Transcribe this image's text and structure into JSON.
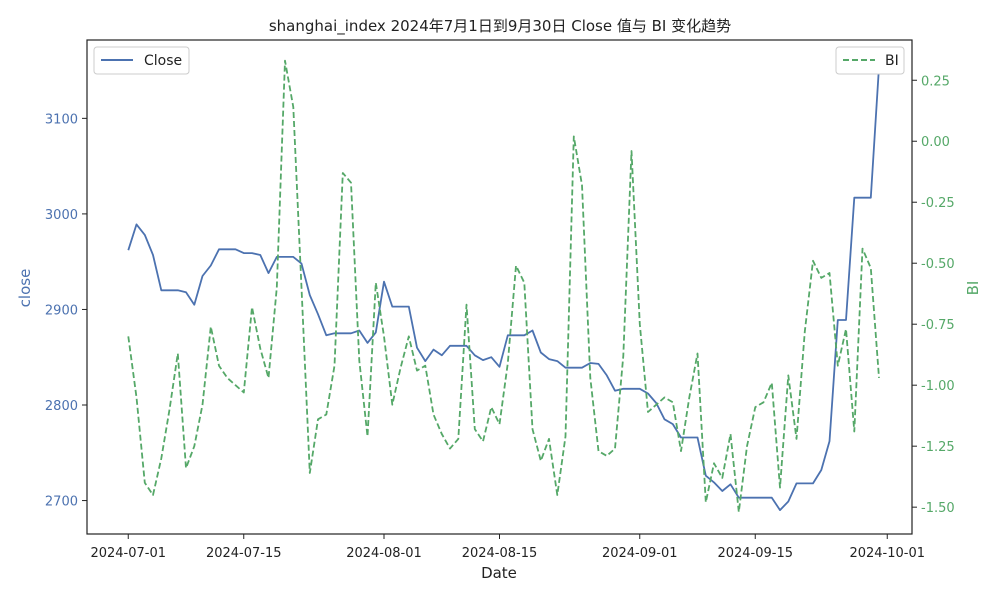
{
  "chart_data": {
    "type": "line",
    "title": "shanghai_index 2024年7月1日到9月30日 Close 值与 BI 变化趋势",
    "xlabel": "Date",
    "ylabel_left": "close",
    "ylabel_right": "BI",
    "x_start": "2024-06-26",
    "x_end": "2024-10-04",
    "x_ticks": [
      "2024-07-01",
      "2024-07-15",
      "2024-08-01",
      "2024-08-15",
      "2024-09-01",
      "2024-09-15",
      "2024-10-01"
    ],
    "y_left": {
      "ylim": [
        2665,
        3182
      ],
      "ticks": [
        "2700",
        "2800",
        "2900",
        "3000",
        "3100"
      ]
    },
    "y_right": {
      "ylim": [
        -1.61,
        0.415
      ],
      "ticks": [
        "-1.50",
        "-1.25",
        "-1.00",
        "-0.75",
        "-0.50",
        "-0.25",
        "0.00",
        "0.25"
      ]
    },
    "colors": {
      "close": "#4c72b0",
      "bi": "#55a868"
    },
    "legend_left": {
      "placement": "top-left",
      "label": "Close"
    },
    "legend_right": {
      "placement": "top-right",
      "label": "BI"
    },
    "series": [
      {
        "name": "Close",
        "axis": "left",
        "style": "solid",
        "points": [
          [
            "2024-07-01",
            2962
          ],
          [
            "2024-07-02",
            2989
          ],
          [
            "2024-07-03",
            2978
          ],
          [
            "2024-07-04",
            2957
          ],
          [
            "2024-07-05",
            2920
          ],
          [
            "2024-07-06",
            2920
          ],
          [
            "2024-07-07",
            2920
          ],
          [
            "2024-07-08",
            2918
          ],
          [
            "2024-07-09",
            2905
          ],
          [
            "2024-07-10",
            2935
          ],
          [
            "2024-07-11",
            2946
          ],
          [
            "2024-07-12",
            2963
          ],
          [
            "2024-07-13",
            2963
          ],
          [
            "2024-07-14",
            2963
          ],
          [
            "2024-07-15",
            2959
          ],
          [
            "2024-07-16",
            2959
          ],
          [
            "2024-07-17",
            2957
          ],
          [
            "2024-07-18",
            2938
          ],
          [
            "2024-07-19",
            2955
          ],
          [
            "2024-07-20",
            2955
          ],
          [
            "2024-07-21",
            2955
          ],
          [
            "2024-07-22",
            2948
          ],
          [
            "2024-07-23",
            2915
          ],
          [
            "2024-07-24",
            2895
          ],
          [
            "2024-07-25",
            2873
          ],
          [
            "2024-07-26",
            2875
          ],
          [
            "2024-07-27",
            2875
          ],
          [
            "2024-07-28",
            2875
          ],
          [
            "2024-07-29",
            2878
          ],
          [
            "2024-07-30",
            2865
          ],
          [
            "2024-07-31",
            2876
          ],
          [
            "2024-08-01",
            2929
          ],
          [
            "2024-08-02",
            2903
          ],
          [
            "2024-08-03",
            2903
          ],
          [
            "2024-08-04",
            2903
          ],
          [
            "2024-08-05",
            2860
          ],
          [
            "2024-08-06",
            2846
          ],
          [
            "2024-08-07",
            2858
          ],
          [
            "2024-08-08",
            2852
          ],
          [
            "2024-08-09",
            2862
          ],
          [
            "2024-08-10",
            2862
          ],
          [
            "2024-08-11",
            2862
          ],
          [
            "2024-08-12",
            2852
          ],
          [
            "2024-08-13",
            2847
          ],
          [
            "2024-08-14",
            2850
          ],
          [
            "2024-08-15",
            2840
          ],
          [
            "2024-08-16",
            2873
          ],
          [
            "2024-08-17",
            2873
          ],
          [
            "2024-08-18",
            2873
          ],
          [
            "2024-08-19",
            2878
          ],
          [
            "2024-08-20",
            2855
          ],
          [
            "2024-08-21",
            2848
          ],
          [
            "2024-08-22",
            2846
          ],
          [
            "2024-08-23",
            2839
          ],
          [
            "2024-08-24",
            2839
          ],
          [
            "2024-08-25",
            2839
          ],
          [
            "2024-08-26",
            2844
          ],
          [
            "2024-08-27",
            2843
          ],
          [
            "2024-08-28",
            2831
          ],
          [
            "2024-08-29",
            2815
          ],
          [
            "2024-08-30",
            2817
          ],
          [
            "2024-08-31",
            2817
          ],
          [
            "2024-09-01",
            2817
          ],
          [
            "2024-09-02",
            2812
          ],
          [
            "2024-09-03",
            2802
          ],
          [
            "2024-09-04",
            2785
          ],
          [
            "2024-09-05",
            2780
          ],
          [
            "2024-09-06",
            2766
          ],
          [
            "2024-09-07",
            2766
          ],
          [
            "2024-09-08",
            2766
          ],
          [
            "2024-09-09",
            2726
          ],
          [
            "2024-09-10",
            2719
          ],
          [
            "2024-09-11",
            2710
          ],
          [
            "2024-09-12",
            2717
          ],
          [
            "2024-09-13",
            2703
          ],
          [
            "2024-09-14",
            2703
          ],
          [
            "2024-09-15",
            2703
          ],
          [
            "2024-09-16",
            2703
          ],
          [
            "2024-09-17",
            2703
          ],
          [
            "2024-09-18",
            2690
          ],
          [
            "2024-09-19",
            2699
          ],
          [
            "2024-09-20",
            2718
          ],
          [
            "2024-09-21",
            2718
          ],
          [
            "2024-09-22",
            2718
          ],
          [
            "2024-09-23",
            2732
          ],
          [
            "2024-09-24",
            2762
          ],
          [
            "2024-09-25",
            2889
          ],
          [
            "2024-09-26",
            2889
          ],
          [
            "2024-09-27",
            3017
          ],
          [
            "2024-09-28",
            3017
          ],
          [
            "2024-09-29",
            3017
          ],
          [
            "2024-09-30",
            3154
          ]
        ]
      },
      {
        "name": "BI",
        "axis": "right",
        "style": "dashed",
        "points": [
          [
            "2024-07-01",
            -0.8
          ],
          [
            "2024-07-02",
            -1.05
          ],
          [
            "2024-07-03",
            -1.4
          ],
          [
            "2024-07-04",
            -1.45
          ],
          [
            "2024-07-05",
            -1.3
          ],
          [
            "2024-07-06",
            -1.1
          ],
          [
            "2024-07-07",
            -0.87
          ],
          [
            "2024-07-08",
            -1.34
          ],
          [
            "2024-07-09",
            -1.25
          ],
          [
            "2024-07-10",
            -1.08
          ],
          [
            "2024-07-11",
            -0.76
          ],
          [
            "2024-07-12",
            -0.92
          ],
          [
            "2024-07-13",
            -0.97
          ],
          [
            "2024-07-14",
            -1.0
          ],
          [
            "2024-07-15",
            -1.03
          ],
          [
            "2024-07-16",
            -0.68
          ],
          [
            "2024-07-17",
            -0.85
          ],
          [
            "2024-07-18",
            -0.97
          ],
          [
            "2024-07-19",
            -0.6
          ],
          [
            "2024-07-20",
            0.33
          ],
          [
            "2024-07-21",
            0.14
          ],
          [
            "2024-07-22",
            -0.6
          ],
          [
            "2024-07-23",
            -1.36
          ],
          [
            "2024-07-24",
            -1.14
          ],
          [
            "2024-07-25",
            -1.12
          ],
          [
            "2024-07-26",
            -0.92
          ],
          [
            "2024-07-27",
            -0.13
          ],
          [
            "2024-07-28",
            -0.17
          ],
          [
            "2024-07-29",
            -0.9
          ],
          [
            "2024-07-30",
            -1.21
          ],
          [
            "2024-07-31",
            -0.58
          ],
          [
            "2024-08-01",
            -0.8
          ],
          [
            "2024-08-02",
            -1.08
          ],
          [
            "2024-08-03",
            -0.93
          ],
          [
            "2024-08-04",
            -0.8
          ],
          [
            "2024-08-05",
            -0.94
          ],
          [
            "2024-08-06",
            -0.92
          ],
          [
            "2024-08-07",
            -1.12
          ],
          [
            "2024-08-08",
            -1.2
          ],
          [
            "2024-08-09",
            -1.26
          ],
          [
            "2024-08-10",
            -1.22
          ],
          [
            "2024-08-11",
            -0.67
          ],
          [
            "2024-08-12",
            -1.18
          ],
          [
            "2024-08-13",
            -1.23
          ],
          [
            "2024-08-14",
            -1.09
          ],
          [
            "2024-08-15",
            -1.16
          ],
          [
            "2024-08-16",
            -0.91
          ],
          [
            "2024-08-17",
            -0.51
          ],
          [
            "2024-08-18",
            -0.58
          ],
          [
            "2024-08-19",
            -1.18
          ],
          [
            "2024-08-20",
            -1.31
          ],
          [
            "2024-08-21",
            -1.22
          ],
          [
            "2024-08-22",
            -1.45
          ],
          [
            "2024-08-23",
            -1.21
          ],
          [
            "2024-08-24",
            0.02
          ],
          [
            "2024-08-25",
            -0.18
          ],
          [
            "2024-08-26",
            -0.97
          ],
          [
            "2024-08-27",
            -1.27
          ],
          [
            "2024-08-28",
            -1.29
          ],
          [
            "2024-08-29",
            -1.26
          ],
          [
            "2024-08-30",
            -0.88
          ],
          [
            "2024-08-31",
            -0.04
          ],
          [
            "2024-09-01",
            -0.75
          ],
          [
            "2024-09-02",
            -1.11
          ],
          [
            "2024-09-03",
            -1.08
          ],
          [
            "2024-09-04",
            -1.05
          ],
          [
            "2024-09-05",
            -1.07
          ],
          [
            "2024-09-06",
            -1.27
          ],
          [
            "2024-09-07",
            -1.05
          ],
          [
            "2024-09-08",
            -0.87
          ],
          [
            "2024-09-09",
            -1.48
          ],
          [
            "2024-09-10",
            -1.32
          ],
          [
            "2024-09-11",
            -1.38
          ],
          [
            "2024-09-12",
            -1.2
          ],
          [
            "2024-09-13",
            -1.52
          ],
          [
            "2024-09-14",
            -1.25
          ],
          [
            "2024-09-15",
            -1.09
          ],
          [
            "2024-09-16",
            -1.07
          ],
          [
            "2024-09-17",
            -0.99
          ],
          [
            "2024-09-18",
            -1.42
          ],
          [
            "2024-09-19",
            -0.96
          ],
          [
            "2024-09-20",
            -1.22
          ],
          [
            "2024-09-21",
            -0.78
          ],
          [
            "2024-09-22",
            -0.49
          ],
          [
            "2024-09-23",
            -0.56
          ],
          [
            "2024-09-24",
            -0.54
          ],
          [
            "2024-09-25",
            -0.92
          ],
          [
            "2024-09-26",
            -0.77
          ],
          [
            "2024-09-27",
            -1.19
          ],
          [
            "2024-09-28",
            -0.44
          ],
          [
            "2024-09-29",
            -0.52
          ],
          [
            "2024-09-30",
            -0.97
          ]
        ]
      }
    ]
  }
}
